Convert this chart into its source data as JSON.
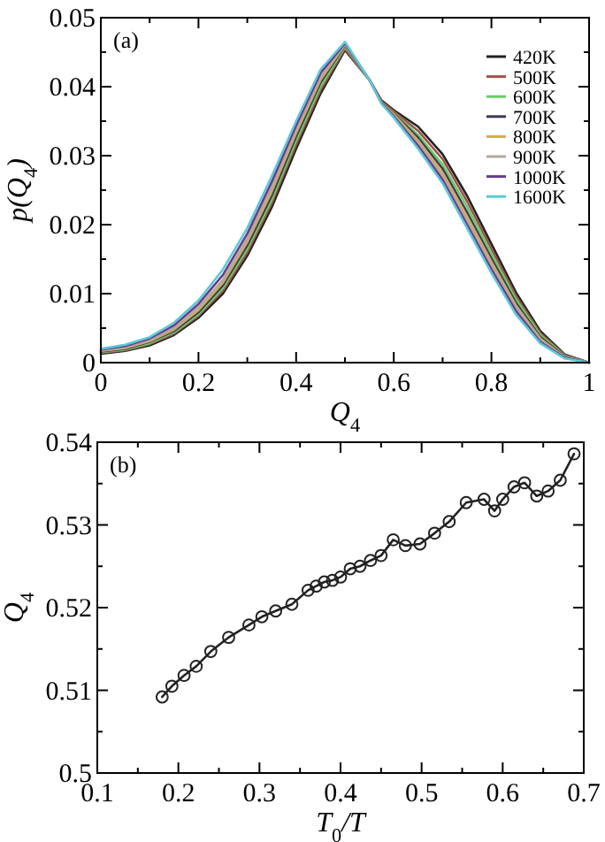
{
  "chart_data": [
    {
      "type": "line",
      "xlabel": "Q$_{4}$",
      "ylabel": "p(Q$_{4}$)",
      "annotations": [
        "(a)"
      ],
      "legend": "top right",
      "x": [
        0,
        0.05,
        0.1,
        0.15,
        0.2,
        0.25,
        0.3,
        0.35,
        0.4,
        0.45,
        0.5,
        0.55,
        0.575,
        0.6,
        0.65,
        0.7,
        0.75,
        0.8,
        0.85,
        0.9,
        0.95,
        1.0
      ],
      "xlim": [
        0,
        1
      ],
      "ylim": [
        0,
        0.05
      ],
      "xticks": [
        0,
        {
          "value": 0.1,
          "label": null
        },
        0.2,
        {
          "value": 0.3,
          "label": null
        },
        0.4,
        {
          "value": 0.5,
          "label": null
        },
        0.6,
        {
          "value": 0.7,
          "label": null
        },
        0.8,
        {
          "value": 0.9,
          "label": null
        },
        1
      ],
      "yticks": [
        0,
        {
          "value": 0.005,
          "label": null
        },
        0.01,
        {
          "value": 0.015,
          "label": null
        },
        0.02,
        {
          "value": 0.025,
          "label": null
        },
        0.03,
        {
          "value": 0.035,
          "label": null
        },
        0.04,
        {
          "value": 0.045,
          "label": null
        },
        0.05
      ],
      "series": [
        {
          "name": "420K",
          "color": "#222222",
          "values": [
            0.0013,
            0.0017,
            0.0025,
            0.004,
            0.0065,
            0.01,
            0.0155,
            0.0225,
            0.031,
            0.039,
            0.0453,
            0.041,
            0.038,
            0.0366,
            0.0342,
            0.0302,
            0.0242,
            0.0172,
            0.0102,
            0.0046,
            0.0012,
            0
          ]
        },
        {
          "name": "500K",
          "color": "#a0524a",
          "values": [
            0.0014,
            0.0018,
            0.0027,
            0.0042,
            0.0068,
            0.0104,
            0.016,
            0.0231,
            0.0316,
            0.0395,
            0.0455,
            0.041,
            0.0379,
            0.0364,
            0.0336,
            0.0295,
            0.0234,
            0.0165,
            0.0097,
            0.0043,
            0.0011,
            0
          ]
        },
        {
          "name": "600K",
          "color": "#66cc66",
          "values": [
            0.0015,
            0.0019,
            0.0028,
            0.0044,
            0.007,
            0.0108,
            0.0165,
            0.0236,
            0.0322,
            0.04,
            0.0458,
            0.041,
            0.0378,
            0.0362,
            0.033,
            0.0287,
            0.0226,
            0.0158,
            0.0092,
            0.004,
            0.001,
            0
          ]
        },
        {
          "name": "700K",
          "color": "#3a3a5a",
          "values": [
            0.0016,
            0.002,
            0.003,
            0.0046,
            0.0073,
            0.0112,
            0.017,
            0.0242,
            0.0328,
            0.0406,
            0.046,
            0.041,
            0.0378,
            0.0361,
            0.0326,
            0.0281,
            0.0218,
            0.0151,
            0.0087,
            0.0037,
            0.0009,
            0
          ]
        },
        {
          "name": "800K",
          "color": "#d4aa55",
          "values": [
            0.0017,
            0.0021,
            0.0031,
            0.0048,
            0.0076,
            0.0116,
            0.0175,
            0.0248,
            0.0333,
            0.041,
            0.0461,
            0.041,
            0.0377,
            0.036,
            0.0322,
            0.0275,
            0.0212,
            0.0146,
            0.0083,
            0.0035,
            0.0008,
            0
          ]
        },
        {
          "name": "900K",
          "color": "#b0a8a0",
          "values": [
            0.0018,
            0.0022,
            0.0033,
            0.005,
            0.008,
            0.012,
            0.018,
            0.0254,
            0.0338,
            0.0414,
            0.0462,
            0.041,
            0.0376,
            0.0358,
            0.0318,
            0.027,
            0.0206,
            0.0141,
            0.008,
            0.0033,
            0.0008,
            0
          ]
        },
        {
          "name": "1000K",
          "color": "#6a3a8a",
          "values": [
            0.0019,
            0.0024,
            0.0035,
            0.0054,
            0.0085,
            0.0127,
            0.0187,
            0.0262,
            0.0344,
            0.042,
            0.0463,
            0.041,
            0.0376,
            0.0357,
            0.0314,
            0.0265,
            0.02,
            0.0135,
            0.0075,
            0.003,
            0.0007,
            0
          ]
        },
        {
          "name": "1600K",
          "color": "#5cc8d8",
          "values": [
            0.002,
            0.0026,
            0.0037,
            0.0058,
            0.009,
            0.0135,
            0.0195,
            0.027,
            0.035,
            0.0425,
            0.0465,
            0.041,
            0.0375,
            0.0355,
            0.031,
            0.026,
            0.0195,
            0.013,
            0.007,
            0.0028,
            0.0006,
            0
          ]
        }
      ]
    },
    {
      "type": "line",
      "xlabel": "T$_{0}$/T",
      "ylabel": "Q$_{4}$",
      "annotations": [
        "(b)"
      ],
      "marker": "circle",
      "line_style": "solid",
      "xlim": [
        0.1,
        0.7
      ],
      "ylim": [
        0.5,
        0.54
      ],
      "xticks": [
        0.1,
        {
          "value": 0.15,
          "label": null
        },
        0.2,
        {
          "value": 0.25,
          "label": null
        },
        0.3,
        {
          "value": 0.35,
          "label": null
        },
        0.4,
        {
          "value": 0.45,
          "label": null
        },
        0.5,
        {
          "value": 0.55,
          "label": null
        },
        0.6,
        {
          "value": 0.65,
          "label": null
        },
        0.7
      ],
      "yticks": [
        0.5,
        {
          "value": 0.505,
          "label": null
        },
        0.51,
        {
          "value": 0.515,
          "label": null
        },
        0.52,
        {
          "value": 0.525,
          "label": null
        },
        0.53,
        {
          "value": 0.535,
          "label": null
        },
        0.54
      ],
      "series": [
        {
          "color": "#222222",
          "x": [
            0.18,
            0.192,
            0.207,
            0.222,
            0.24,
            0.262,
            0.287,
            0.303,
            0.32,
            0.34,
            0.36,
            0.37,
            0.38,
            0.39,
            0.4,
            0.412,
            0.424,
            0.437,
            0.45,
            0.465,
            0.48,
            0.498,
            0.516,
            0.534,
            0.555,
            0.577,
            0.59,
            0.6,
            0.614,
            0.627,
            0.642,
            0.656,
            0.671,
            0.688
          ],
          "values": [
            0.5092,
            0.5105,
            0.5118,
            0.5129,
            0.5147,
            0.5164,
            0.5179,
            0.5189,
            0.5196,
            0.5204,
            0.5221,
            0.5226,
            0.5231,
            0.5233,
            0.5237,
            0.5247,
            0.525,
            0.5257,
            0.5263,
            0.5282,
            0.5275,
            0.5277,
            0.529,
            0.5304,
            0.5327,
            0.5331,
            0.5317,
            0.5331,
            0.5346,
            0.5351,
            0.5335,
            0.5341,
            0.5354,
            0.5386
          ]
        }
      ]
    }
  ]
}
